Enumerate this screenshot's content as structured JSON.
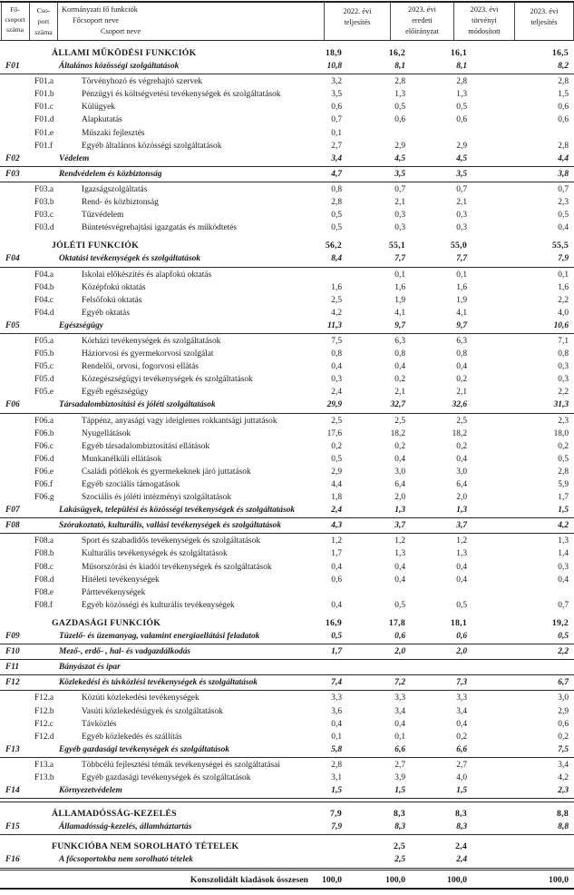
{
  "colors": {
    "text": "#1a1a1a",
    "rule": "#2b2b2b",
    "background": "#ffffff"
  },
  "header": {
    "col_group_code": [
      "Fő-",
      "csoport",
      "száma"
    ],
    "col_subgroup_code": [
      "Cso-",
      "port",
      "száma"
    ],
    "col_name_lines": [
      "Kormányzati fő funkciók",
      "Főcsoport neve",
      "Csoport neve"
    ],
    "col_2022_teljesites": [
      "2022. évi",
      "teljesítés"
    ],
    "col_2023_eredeti": [
      "2023. évi",
      "eredeti",
      "előirányzat"
    ],
    "col_2023_torvenyi": [
      "2023. évi",
      "törvényi",
      "módosított"
    ],
    "col_2023_teljesites": [
      "2023. évi",
      "teljesítés"
    ]
  },
  "rows": [
    {
      "type": "section",
      "code": "",
      "name": "ÁLLAMI MŰKÖDÉSI FUNKCIÓK",
      "v": [
        "18,9",
        "16,2",
        "16,1",
        "16,5"
      ]
    },
    {
      "type": "group",
      "code": "F01",
      "name": "Általános közösségi szolgáltatások",
      "v": [
        "10,8",
        "8,1",
        "8,1",
        "8,2"
      ],
      "rule": "single"
    },
    {
      "type": "sub",
      "code": "F01.a",
      "name": "Törvényhozó és végrehajtó szervek",
      "v": [
        "3,2",
        "2,8",
        "2,8",
        "2,8"
      ]
    },
    {
      "type": "sub",
      "code": "F01.b",
      "name": "Pénzügyi és költségvetési tevékenységek és szolgáltatások",
      "v": [
        "3,5",
        "1,3",
        "1,3",
        "1,5"
      ]
    },
    {
      "type": "sub",
      "code": "F01.c",
      "name": "Külügyek",
      "v": [
        "0,6",
        "0,5",
        "0,5",
        "0,6"
      ]
    },
    {
      "type": "sub",
      "code": "F01.d",
      "name": "Alapkutatás",
      "v": [
        "0,7",
        "0,6",
        "0,6",
        "0,6"
      ]
    },
    {
      "type": "sub",
      "code": "F01.e",
      "name": "Műszaki fejlesztés",
      "v": [
        "0,1",
        "",
        "",
        ""
      ]
    },
    {
      "type": "sub",
      "code": "F01.f",
      "name": "Egyéb általános közösségi szolgáltatások",
      "v": [
        "2,7",
        "2,9",
        "2,9",
        "2,8"
      ]
    },
    {
      "type": "group",
      "code": "F02",
      "name": "Védelem",
      "v": [
        "3,4",
        "4,5",
        "4,5",
        "4,4"
      ],
      "rule": "single"
    },
    {
      "type": "group",
      "code": "F03",
      "name": "Rendvédelem és közbiztonság",
      "v": [
        "4,7",
        "3,5",
        "3,5",
        "3,8"
      ],
      "rule": "single"
    },
    {
      "type": "sub",
      "code": "F03.a",
      "name": "Igazságszolgáltatás",
      "v": [
        "0,8",
        "0,7",
        "0,7",
        "0,7"
      ]
    },
    {
      "type": "sub",
      "code": "F03.b",
      "name": "Rend- és közbiztonság",
      "v": [
        "2,8",
        "2,1",
        "2,1",
        "2,3"
      ]
    },
    {
      "type": "sub",
      "code": "F03.c",
      "name": "Tűzvédelem",
      "v": [
        "0,5",
        "0,3",
        "0,3",
        "0,5"
      ]
    },
    {
      "type": "sub",
      "code": "F03.d",
      "name": "Büntetésvégrehajtási igazgatás és működtetés",
      "v": [
        "0,5",
        "0,3",
        "0,3",
        "0,4"
      ]
    },
    {
      "type": "section",
      "code": "",
      "name": "JÓLÉTI FUNKCIÓK",
      "v": [
        "56,2",
        "55,1",
        "55,0",
        "55,5"
      ]
    },
    {
      "type": "group",
      "code": "F04",
      "name": "Oktatási tevékenységek és szolgáltatások",
      "v": [
        "8,4",
        "7,7",
        "7,7",
        "7,9"
      ],
      "rule": "single"
    },
    {
      "type": "sub",
      "code": "F04.a",
      "name": "Iskolai előkészítés és alapfokú oktatás",
      "v": [
        "",
        "0,1",
        "0,1",
        "0,1"
      ]
    },
    {
      "type": "sub",
      "code": "F04.b",
      "name": "Középfokú oktatás",
      "v": [
        "1,6",
        "1,6",
        "1,6",
        "1,6"
      ]
    },
    {
      "type": "sub",
      "code": "F04.c",
      "name": "Felsőfokú oktatás",
      "v": [
        "2,5",
        "1,9",
        "1,9",
        "2,2"
      ]
    },
    {
      "type": "sub",
      "code": "F04.d",
      "name": "Egyéb oktatás",
      "v": [
        "4,2",
        "4,1",
        "4,1",
        "4,0"
      ]
    },
    {
      "type": "group",
      "code": "F05",
      "name": "Egészségügy",
      "v": [
        "11,3",
        "9,7",
        "9,7",
        "10,6"
      ],
      "rule": "single"
    },
    {
      "type": "sub",
      "code": "F05.a",
      "name": "Kórházi tevékenységek és szolgáltatások",
      "v": [
        "7,5",
        "6,3",
        "6,3",
        "7,1"
      ]
    },
    {
      "type": "sub",
      "code": "F05.b",
      "name": "Háziorvosi és gyermekorvosi szolgálat",
      "v": [
        "0,8",
        "0,8",
        "0,8",
        "0,8"
      ]
    },
    {
      "type": "sub",
      "code": "F05.c",
      "name": "Rendelői, orvosi, fogorvosi ellátás",
      "v": [
        "0,4",
        "0,4",
        "0,4",
        "0,3"
      ]
    },
    {
      "type": "sub",
      "code": "F05.d",
      "name": "Közegészségügyi tevékenységek és szolgáltatások",
      "v": [
        "0,3",
        "0,2",
        "0,2",
        "0,3"
      ]
    },
    {
      "type": "sub",
      "code": "F05.e",
      "name": "Egyéb egészségügy",
      "v": [
        "2,4",
        "2,1",
        "2,1",
        "2,2"
      ]
    },
    {
      "type": "group",
      "code": "F06",
      "name": "Társadalombiztosítási és jóléti szolgáltatások",
      "v": [
        "29,9",
        "32,7",
        "32,6",
        "31,3"
      ],
      "rule": "single"
    },
    {
      "type": "sub",
      "code": "F06.a",
      "name": "Táppénz, anyasági vagy ideiglenes rokkantsági juttatások",
      "v": [
        "2,5",
        "2,5",
        "2,5",
        "2,3"
      ]
    },
    {
      "type": "sub",
      "code": "F06.b",
      "name": "Nyugellátások",
      "v": [
        "17,6",
        "18,2",
        "18,2",
        "18,0"
      ]
    },
    {
      "type": "sub",
      "code": "F06.c",
      "name": "Egyéb társadalombiztosítási ellátások",
      "v": [
        "0,2",
        "0,2",
        "0,2",
        "0,2"
      ]
    },
    {
      "type": "sub",
      "code": "F06.d",
      "name": "Munkanélküli ellátások",
      "v": [
        "0,5",
        "0,4",
        "0,4",
        "0,5"
      ]
    },
    {
      "type": "sub",
      "code": "F06.e",
      "name": "Családi pótlékok és gyermekeknek járó juttatások",
      "v": [
        "2,9",
        "3,0",
        "3,0",
        "2,8"
      ]
    },
    {
      "type": "sub",
      "code": "F06.f",
      "name": "Egyéb szociális támogatások",
      "v": [
        "4,4",
        "6,4",
        "6,4",
        "5,9"
      ]
    },
    {
      "type": "sub",
      "code": "F06.g",
      "name": "Szociális és jóléti intézményi szolgáltatások",
      "v": [
        "1,8",
        "2,0",
        "2,0",
        "1,7"
      ]
    },
    {
      "type": "group",
      "code": "F07",
      "name": "Lakásügyek, települési és közösségi tevékenységek és szolgáltatások",
      "v": [
        "2,4",
        "1,3",
        "1,3",
        "1,5"
      ],
      "rule": "single"
    },
    {
      "type": "group",
      "code": "F08",
      "name": "Szórakoztató, kulturális, vallási tevékenységek és szolgáltatások",
      "v": [
        "4,3",
        "3,7",
        "3,7",
        "4,2"
      ],
      "rule": "single"
    },
    {
      "type": "sub",
      "code": "F08.a",
      "name": "Sport és szabadidős tevékenységek és szolgáltatások",
      "v": [
        "1,2",
        "1,2",
        "1,2",
        "1,3"
      ]
    },
    {
      "type": "sub",
      "code": "F08.b",
      "name": "Kulturális tevékenységek és szolgáltatások",
      "v": [
        "1,7",
        "1,3",
        "1,3",
        "1,4"
      ]
    },
    {
      "type": "sub",
      "code": "F08.c",
      "name": "Műsorszórási és kiadói tevékenységek és szolgáltatások",
      "v": [
        "0,4",
        "0,4",
        "0,4",
        "0,3"
      ]
    },
    {
      "type": "sub",
      "code": "F08.d",
      "name": "Hitéleti tevékenységek",
      "v": [
        "0,6",
        "0,4",
        "0,4",
        "0,4"
      ]
    },
    {
      "type": "sub",
      "code": "F08.e",
      "name": "Párttevékenységek",
      "v": [
        "",
        "",
        "",
        ""
      ]
    },
    {
      "type": "sub",
      "code": "F08.f",
      "name": "Egyéb közösségi és kulturális tevékenységek",
      "v": [
        "0,4",
        "0,5",
        "0,5",
        "0,7"
      ]
    },
    {
      "type": "section",
      "code": "",
      "name": "GAZDASÁGI FUNKCIÓK",
      "v": [
        "16,9",
        "17,8",
        "18,1",
        "19,2"
      ]
    },
    {
      "type": "group",
      "code": "F09",
      "name": "Tüzelő- és üzemanyag, valamint energiaellátási feladatok",
      "v": [
        "0,5",
        "0,6",
        "0,6",
        "0,5"
      ],
      "rule": "single"
    },
    {
      "type": "group",
      "code": "F10",
      "name": "Mező-, erdő- , hal- és vadgazdálkodás",
      "v": [
        "1,7",
        "2,0",
        "2,0",
        "2,2"
      ],
      "rule": "single"
    },
    {
      "type": "group",
      "code": "F11",
      "name": "Bányászat és ipar",
      "v": [
        "",
        "",
        "",
        ""
      ],
      "rule": "single"
    },
    {
      "type": "group",
      "code": "F12",
      "name": "Közlekedési és távközlési tevékenységek és szolgáltatások",
      "v": [
        "7,4",
        "7,2",
        "7,3",
        "6,7"
      ],
      "rule": "single"
    },
    {
      "type": "sub",
      "code": "F12.a",
      "name": "Közúti közlekedési tevékenységek",
      "v": [
        "3,3",
        "3,3",
        "3,3",
        "3,0"
      ]
    },
    {
      "type": "sub",
      "code": "F12.b",
      "name": "Vasúti közlekedésügyek és szolgáltatások",
      "v": [
        "3,6",
        "3,4",
        "3,4",
        "2,9"
      ]
    },
    {
      "type": "sub",
      "code": "F12.c",
      "name": "Távközlés",
      "v": [
        "0,4",
        "0,4",
        "0,4",
        "0,6"
      ]
    },
    {
      "type": "sub",
      "code": "F12.d",
      "name": "Egyéb közlekedés és szállítás",
      "v": [
        "0,1",
        "0,1",
        "0,2",
        "0,2"
      ]
    },
    {
      "type": "group",
      "code": "F13",
      "name": "Egyéb gazdasági tevékenységek és szolgáltatások",
      "v": [
        "5,8",
        "6,6",
        "6,6",
        "7,5"
      ],
      "rule": "single"
    },
    {
      "type": "sub",
      "code": "F13.a",
      "name": "Többcélú fejlesztési témák tevékenységei és szolgáltatásai",
      "v": [
        "2,8",
        "2,7",
        "2,7",
        "3,4"
      ]
    },
    {
      "type": "sub",
      "code": "F13.b",
      "name": "Egyéb gazdasági tevékenységek és szolgáltatások",
      "v": [
        "3,1",
        "3,9",
        "4,0",
        "4,2"
      ]
    },
    {
      "type": "group",
      "code": "F14",
      "name": "Környezetvédelem",
      "v": [
        "1,5",
        "1,5",
        "1,5",
        "2,3"
      ],
      "rule": "double"
    },
    {
      "type": "section",
      "code": "",
      "name": "ÁLLAMADÓSSÁG-KEZELÉS",
      "v": [
        "7,9",
        "8,3",
        "8,3",
        "8,8"
      ]
    },
    {
      "type": "group",
      "code": "F15",
      "name": "Államadósság-kezelés, államháztartás",
      "v": [
        "7,9",
        "8,3",
        "8,3",
        "8,8"
      ],
      "rule": "single"
    },
    {
      "type": "section",
      "code": "",
      "name": "FUNKCIÓBA NEM SOROLHATÓ TÉTELEK",
      "v": [
        "",
        "2,5",
        "2,4",
        ""
      ]
    },
    {
      "type": "group",
      "code": "F16",
      "name": "A főcsoportokba nem sorolható tételek",
      "v": [
        "",
        "2,5",
        "2,4",
        ""
      ],
      "rule": "single"
    },
    {
      "type": "total",
      "code": "",
      "name": "Konszolidált kiadások összesen",
      "v": [
        "100,0",
        "100,0",
        "100,0",
        "100,0"
      ]
    }
  ]
}
